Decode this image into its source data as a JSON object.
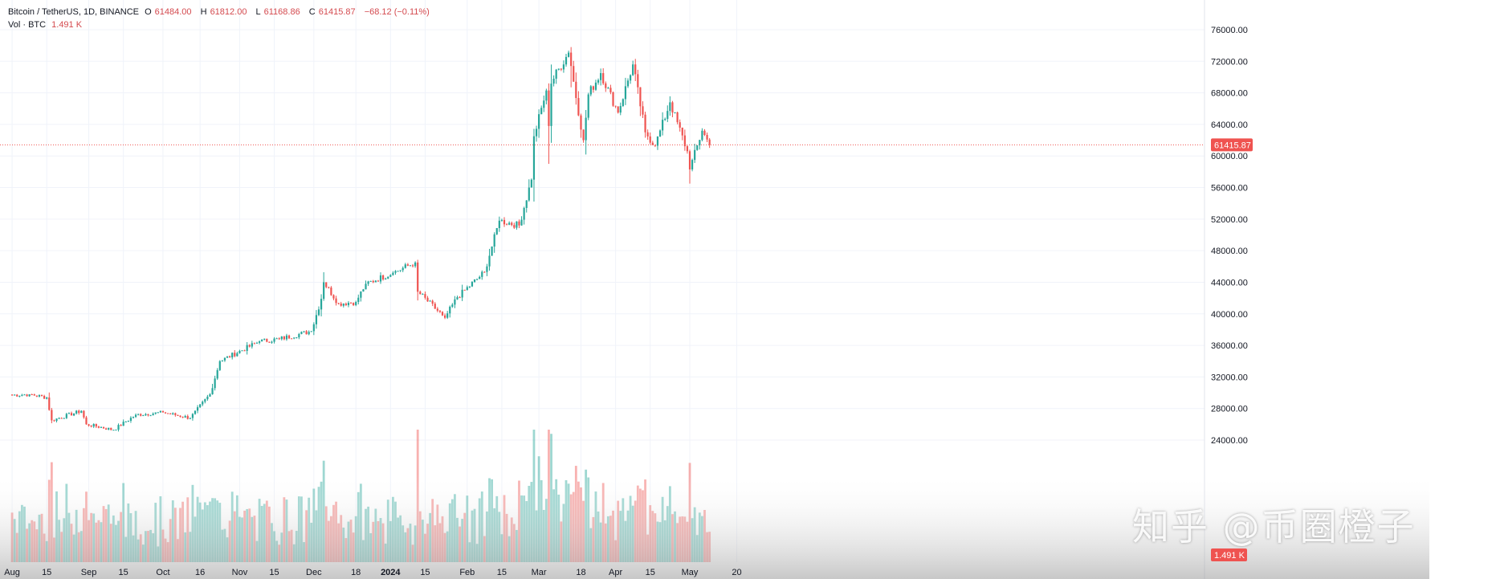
{
  "legend": {
    "symbol": "Bitcoin / TetherUS, 1D, BINANCE",
    "open_label": "O",
    "open": "61484.00",
    "high_label": "H",
    "high": "61812.00",
    "low_label": "L",
    "low": "61168.86",
    "close_label": "C",
    "close": "61415.87",
    "change": "−68.12 (−0.11%)",
    "volume_label": "Vol · BTC",
    "volume": "1.491 K"
  },
  "watermark": "知乎 @币圈橙子",
  "colors": {
    "up": "#26a69a",
    "down": "#ef5350",
    "grid": "#f0f3fa",
    "price_tag": "#ef5350"
  },
  "chart_data": {
    "type": "candlestick",
    "y_ticks": [
      "76000.00",
      "72000.00",
      "68000.00",
      "64000.00",
      "60000.00",
      "56000.00",
      "52000.00",
      "48000.00",
      "44000.00",
      "40000.00",
      "36000.00",
      "32000.00",
      "28000.00",
      "24000.00"
    ],
    "ylim": [
      20500,
      78000
    ],
    "x_ticks": [
      "Aug",
      "15",
      "Sep",
      "15",
      "Oct",
      "16",
      "Nov",
      "15",
      "Dec",
      "18",
      "2024",
      "15",
      "Feb",
      "15",
      "Mar",
      "18",
      "Apr",
      "15",
      "May",
      "20"
    ],
    "last_price": "61415.87",
    "last_volume": "1.491 K",
    "close_path": [
      [
        "2023-08-01",
        29700
      ],
      [
        "2023-08-08",
        29800
      ],
      [
        "2023-08-15",
        29400
      ],
      [
        "2023-08-17",
        26500
      ],
      [
        "2023-08-29",
        27700
      ],
      [
        "2023-08-31",
        26000
      ],
      [
        "2023-09-11",
        25300
      ],
      [
        "2023-09-20",
        27200
      ],
      [
        "2023-10-01",
        27500
      ],
      [
        "2023-10-12",
        26800
      ],
      [
        "2023-10-20",
        29800
      ],
      [
        "2023-10-24",
        34000
      ],
      [
        "2023-11-09",
        36500
      ],
      [
        "2023-11-17",
        36800
      ],
      [
        "2023-11-30",
        37800
      ],
      [
        "2023-12-04",
        41900
      ],
      [
        "2023-12-05",
        44000
      ],
      [
        "2023-12-11",
        41300
      ],
      [
        "2023-12-18",
        41500
      ],
      [
        "2023-12-22",
        43800
      ],
      [
        "2024-01-02",
        45200
      ],
      [
        "2024-01-11",
        46500
      ],
      [
        "2024-01-12",
        42800
      ],
      [
        "2024-01-22",
        39800
      ],
      [
        "2024-01-23",
        39500
      ],
      [
        "2024-01-28",
        42100
      ],
      [
        "2024-02-08",
        45300
      ],
      [
        "2024-02-14",
        51800
      ],
      [
        "2024-02-22",
        51200
      ],
      [
        "2024-02-27",
        57000
      ],
      [
        "2024-02-28",
        62500
      ],
      [
        "2024-03-04",
        68300
      ],
      [
        "2024-03-13",
        73100
      ],
      [
        "2024-03-19",
        62000
      ],
      [
        "2024-03-21",
        67800
      ],
      [
        "2024-03-26",
        70500
      ],
      [
        "2024-04-02",
        65500
      ],
      [
        "2024-04-08",
        71600
      ],
      [
        "2024-04-13",
        63000
      ],
      [
        "2024-04-17",
        61300
      ],
      [
        "2024-04-23",
        66800
      ],
      [
        "2024-04-30",
        60600
      ],
      [
        "2024-05-01",
        58300
      ],
      [
        "2024-05-06",
        63200
      ],
      [
        "2024-05-09",
        61415
      ]
    ],
    "highlights": [
      {
        "date": "2024-03-05",
        "open": 68300,
        "high": 69200,
        "low": 59000,
        "close": 63800
      },
      {
        "date": "2024-03-14",
        "open": 73100,
        "high": 73800,
        "low": 68700,
        "close": 71400
      },
      {
        "date": "2024-05-01",
        "open": 60600,
        "high": 60800,
        "low": 56500,
        "close": 58300
      }
    ]
  }
}
